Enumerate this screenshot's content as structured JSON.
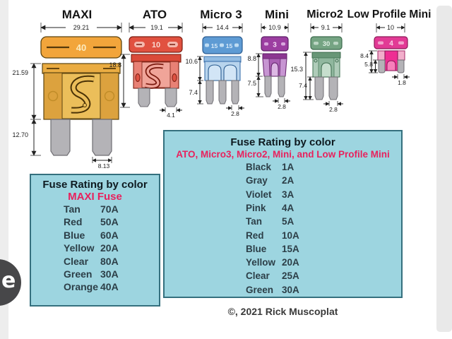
{
  "fuses": {
    "maxi": {
      "label": "MAXI",
      "rating": "40",
      "width": "29.21",
      "body_height": "21.59",
      "prong_height": "12.70",
      "prong_width": "8.13"
    },
    "ato": {
      "label": "ATO",
      "rating": "10",
      "width": "19.1",
      "height": "18.8",
      "prong_width": "4.1"
    },
    "micro3": {
      "label": "Micro 3",
      "rating_left": "15",
      "rating_right": "15",
      "width": "14.4",
      "body_height": "10.6",
      "prong_height": "7.4",
      "prong_width": "2.8"
    },
    "mini": {
      "label": "Mini",
      "rating": "3",
      "width": "10.9",
      "body_height": "8.8",
      "prong_height": "7.5",
      "prong_width": "2.8"
    },
    "micro2": {
      "label": "Micro2",
      "rating": "30",
      "width": "9.1",
      "height": "15.3",
      "prong_height": "7.4",
      "prong_width": "2.8"
    },
    "lpmini": {
      "label": "Low Profile Mini",
      "rating": "4",
      "width": "10",
      "height": "8.4",
      "inner_height": "5.8",
      "prong_width": "1.8"
    }
  },
  "tables": {
    "maxi": {
      "title": "Fuse Rating by color",
      "subtitle": "MAXI Fuse",
      "rows": [
        {
          "color": "Tan",
          "amps": "70A"
        },
        {
          "color": "Red",
          "amps": "50A"
        },
        {
          "color": "Blue",
          "amps": "60A"
        },
        {
          "color": "Yellow",
          "amps": "20A"
        },
        {
          "color": "Clear",
          "amps": "80A"
        },
        {
          "color": "Green",
          "amps": "30A"
        },
        {
          "color": "Orange",
          "amps": "40A"
        }
      ]
    },
    "others": {
      "title": "Fuse Rating by color",
      "subtitle": "ATO, Micro3, Micro2, Mini, and Low Profile Mini",
      "rows": [
        {
          "color": "Black",
          "amps": "1A"
        },
        {
          "color": "Gray",
          "amps": "2A"
        },
        {
          "color": "Violet",
          "amps": "3A"
        },
        {
          "color": "Pink",
          "amps": "4A"
        },
        {
          "color": "Tan",
          "amps": "5A"
        },
        {
          "color": "Red",
          "amps": "10A"
        },
        {
          "color": "Blue",
          "amps": "15A"
        },
        {
          "color": "Yellow",
          "amps": "20A"
        },
        {
          "color": "Clear",
          "amps": "25A"
        },
        {
          "color": "Green",
          "amps": "30A"
        }
      ]
    }
  },
  "copyright": "©, 2021 Rick Muscoplat",
  "badge": {
    "letter": "e"
  },
  "colors": {
    "table_bg": "#9dd5e0",
    "accent_crimson": "#e8215d",
    "maxi_orange": "#f2a53b",
    "ato_red": "#e15140",
    "micro3_blue": "#5e9bd4",
    "mini_violet": "#9c3ea1",
    "micro2_green": "#75a483",
    "lp_pink": "#e23a95",
    "prong_gray": "#b4b3b7"
  }
}
